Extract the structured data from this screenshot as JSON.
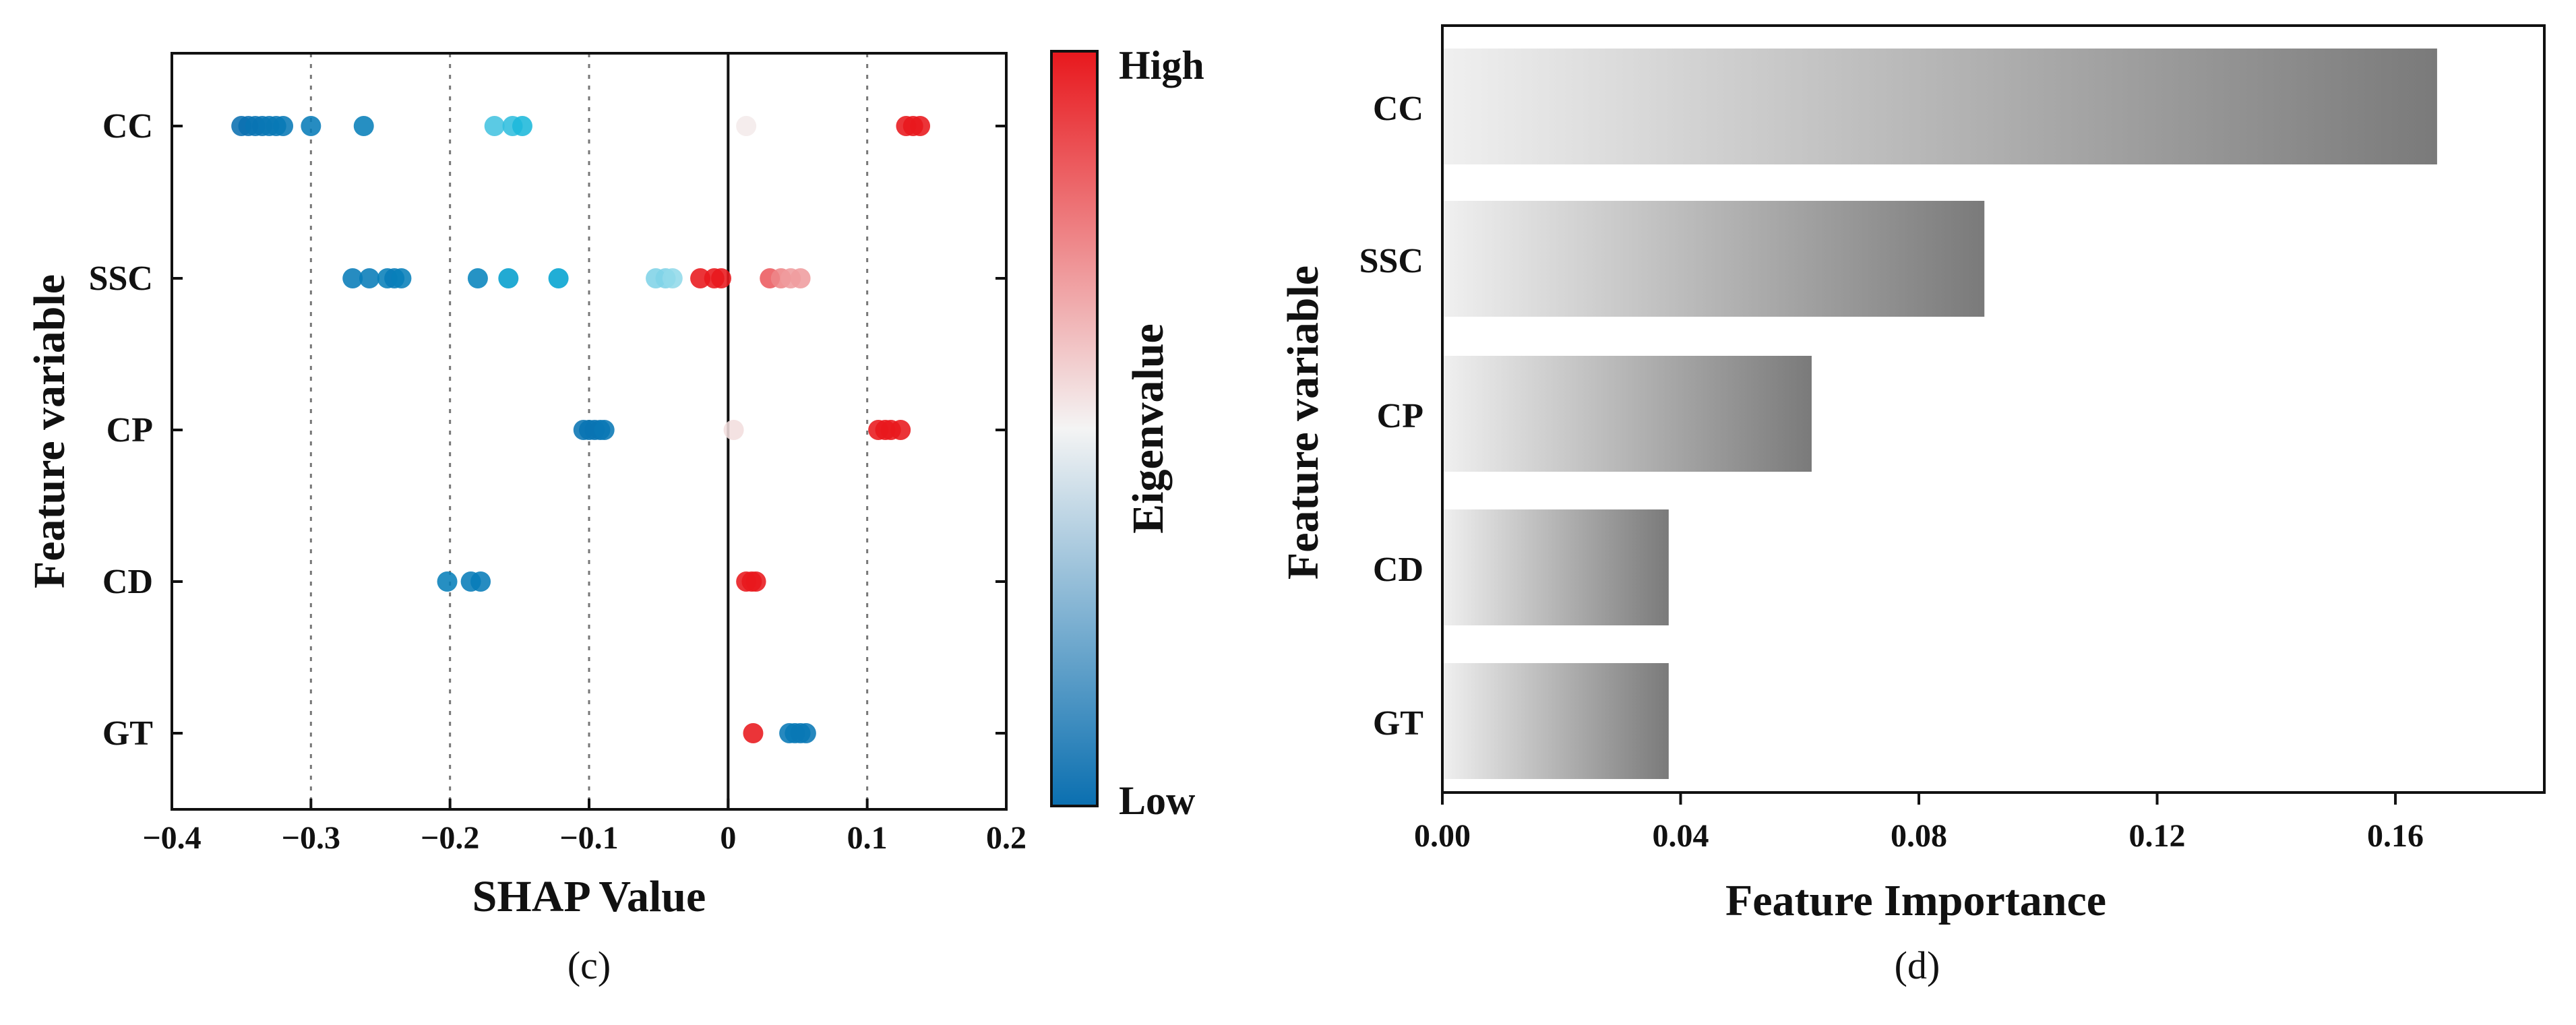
{
  "chart_data": [
    {
      "type": "scatter",
      "panel_label": "(c)",
      "title": "",
      "xlabel": "SHAP  Value",
      "ylabel": "Feature variable",
      "xlim": [
        -0.4,
        0.2
      ],
      "x_ticks": [
        -0.4,
        -0.3,
        -0.2,
        -0.1,
        0,
        0.1,
        0.2
      ],
      "x_tick_labels": [
        "−0.4",
        "−0.3",
        "−0.2",
        "−0.1",
        "0",
        "0.1",
        "0.2"
      ],
      "vertical_gridlines": [
        -0.3,
        -0.2,
        -0.1,
        0.1
      ],
      "zero_line": 0,
      "categories": [
        "CC",
        "SSC",
        "CP",
        "CD",
        "GT"
      ],
      "colorbar": {
        "title": "Eigenvalue",
        "high_label": "High",
        "low_label": "Low",
        "high_color": "#e8181d",
        "mid_color": "#f4f4f4",
        "low_color": "#0a6fb0"
      },
      "series": [
        {
          "name": "CC",
          "points": [
            {
              "x": -0.35,
              "v": 0.0
            },
            {
              "x": -0.345,
              "v": 0.0
            },
            {
              "x": -0.34,
              "v": 0.02
            },
            {
              "x": -0.335,
              "v": 0.02
            },
            {
              "x": -0.33,
              "v": 0.03
            },
            {
              "x": -0.325,
              "v": 0.03
            },
            {
              "x": -0.32,
              "v": 0.04
            },
            {
              "x": -0.3,
              "v": 0.05
            },
            {
              "x": -0.262,
              "v": 0.06
            },
            {
              "x": -0.168,
              "v": 0.32
            },
            {
              "x": -0.155,
              "v": 0.3
            },
            {
              "x": -0.148,
              "v": 0.28
            },
            {
              "x": 0.013,
              "v": 0.52
            },
            {
              "x": 0.128,
              "v": 1.0
            },
            {
              "x": 0.133,
              "v": 1.0
            },
            {
              "x": 0.138,
              "v": 1.0
            }
          ]
        },
        {
          "name": "SSC",
          "points": [
            {
              "x": -0.27,
              "v": 0.05
            },
            {
              "x": -0.258,
              "v": 0.05
            },
            {
              "x": -0.245,
              "v": 0.06
            },
            {
              "x": -0.24,
              "v": 0.05
            },
            {
              "x": -0.235,
              "v": 0.06
            },
            {
              "x": -0.18,
              "v": 0.08
            },
            {
              "x": -0.158,
              "v": 0.18
            },
            {
              "x": -0.122,
              "v": 0.2
            },
            {
              "x": -0.052,
              "v": 0.38
            },
            {
              "x": -0.045,
              "v": 0.38
            },
            {
              "x": -0.04,
              "v": 0.4
            },
            {
              "x": -0.02,
              "v": 1.0
            },
            {
              "x": -0.01,
              "v": 1.0
            },
            {
              "x": -0.005,
              "v": 1.0
            },
            {
              "x": 0.03,
              "v": 0.85
            },
            {
              "x": 0.038,
              "v": 0.75
            },
            {
              "x": 0.045,
              "v": 0.7
            },
            {
              "x": 0.052,
              "v": 0.7
            }
          ]
        },
        {
          "name": "CP",
          "points": [
            {
              "x": -0.104,
              "v": 0.02
            },
            {
              "x": -0.1,
              "v": 0.02
            },
            {
              "x": -0.096,
              "v": 0.02
            },
            {
              "x": -0.092,
              "v": 0.02
            },
            {
              "x": -0.089,
              "v": 0.03
            },
            {
              "x": 0.004,
              "v": 0.55
            },
            {
              "x": 0.108,
              "v": 1.0
            },
            {
              "x": 0.113,
              "v": 1.0
            },
            {
              "x": 0.117,
              "v": 1.0
            },
            {
              "x": 0.124,
              "v": 1.0
            }
          ]
        },
        {
          "name": "CD",
          "points": [
            {
              "x": -0.202,
              "v": 0.06
            },
            {
              "x": -0.185,
              "v": 0.05
            },
            {
              "x": -0.178,
              "v": 0.05
            },
            {
              "x": 0.013,
              "v": 1.0
            },
            {
              "x": 0.017,
              "v": 1.0
            },
            {
              "x": 0.02,
              "v": 1.0
            }
          ]
        },
        {
          "name": "GT",
          "points": [
            {
              "x": 0.018,
              "v": 1.0
            },
            {
              "x": 0.044,
              "v": 0.04
            },
            {
              "x": 0.048,
              "v": 0.04
            },
            {
              "x": 0.052,
              "v": 0.03
            },
            {
              "x": 0.056,
              "v": 0.03
            }
          ]
        }
      ]
    },
    {
      "type": "bar",
      "orientation": "horizontal",
      "panel_label": "(d)",
      "title": "",
      "xlabel": "Feature Importance",
      "ylabel": "Feature variable",
      "xlim": [
        0,
        0.185
      ],
      "x_ticks": [
        0,
        0.04,
        0.08,
        0.12,
        0.16
      ],
      "x_tick_labels": [
        "0.00",
        "0.04",
        "0.08",
        "0.12",
        "0.16"
      ],
      "categories": [
        "CC",
        "SSC",
        "CP",
        "CD",
        "GT"
      ],
      "values": [
        0.167,
        0.091,
        0.062,
        0.038,
        0.038
      ],
      "bar_gradient": {
        "start": "#f0f0f0",
        "end": "#7a7a7a"
      }
    }
  ]
}
